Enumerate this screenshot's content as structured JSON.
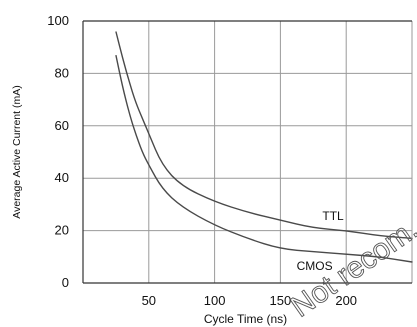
{
  "chart_data": {
    "type": "line",
    "xlabel": "Cycle Time (ns)",
    "ylabel": "Average Active Current (mA)",
    "xlim": [
      0,
      250
    ],
    "ylim": [
      0,
      100
    ],
    "x_ticks": [
      50,
      100,
      150,
      200
    ],
    "y_ticks": [
      0,
      20,
      40,
      60,
      80,
      100
    ],
    "x_tick_labels": [
      "50",
      "100",
      "150",
      "200"
    ],
    "y_tick_labels": [
      "0",
      "20",
      "40",
      "60",
      "80",
      "100"
    ],
    "grid": true,
    "series": [
      {
        "name": "TTL",
        "x": [
          25,
          30,
          35,
          40,
          45,
          50,
          60,
          75,
          100,
          125,
          150,
          175,
          200,
          225,
          250
        ],
        "y": [
          96,
          86,
          77,
          69,
          63,
          57,
          45,
          37,
          31,
          27,
          24,
          21,
          20,
          18,
          17
        ]
      },
      {
        "name": "CMOS",
        "x": [
          25,
          30,
          35,
          40,
          45,
          50,
          60,
          75,
          100,
          125,
          150,
          175,
          200,
          225,
          250
        ],
        "y": [
          87,
          75,
          65,
          57,
          50,
          45,
          36,
          29,
          22,
          17,
          13,
          12,
          11,
          10,
          8
        ]
      }
    ],
    "watermark": "Not recom... prod..."
  }
}
